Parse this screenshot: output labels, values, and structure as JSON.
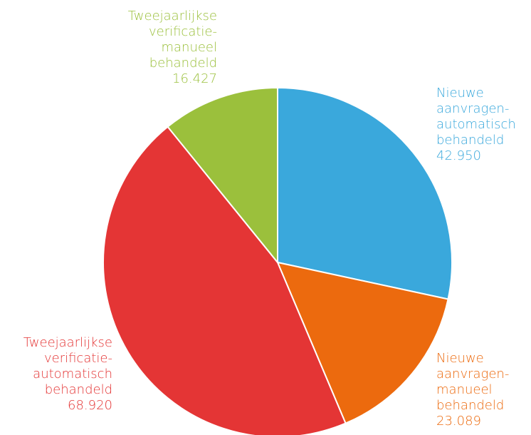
{
  "chart_data": {
    "type": "pie",
    "categories": [
      "Nieuwe aanvragen-automatisch behandeld",
      "Nieuwe aanvragen-manueel behandeld",
      "Tweejaarlijkse verificatie-automatisch behandeld",
      "Tweejaarlijkse verificatie-manueel behandeld"
    ],
    "values": [
      42950,
      23089,
      68920,
      16427
    ],
    "value_labels": [
      "42.950",
      "23.089",
      "68.920",
      "16.427"
    ],
    "colors": [
      "#3aa8dc",
      "#ec6a0e",
      "#e43535",
      "#9bc03c"
    ]
  }
}
